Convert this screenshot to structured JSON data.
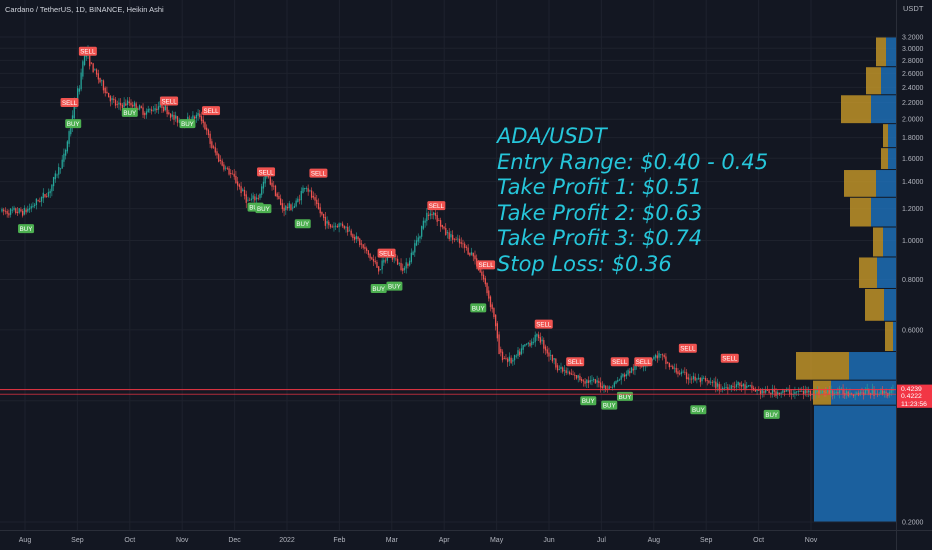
{
  "header": {
    "title": "Cardano / TetherUS, 1D, BINANCE, Heikin Ashi",
    "currency": "USDT"
  },
  "annotation": {
    "lines": [
      "ADA/USDT",
      "Entry Range: $0.40 - 0.45",
      "Take Profit 1: $0.51",
      "Take Profit 2: $0.63",
      "Take Profit 3: $0.74",
      "Stop Loss: $0.36"
    ]
  },
  "colors": {
    "background": "#131722",
    "up": "#26a69a",
    "down": "#ef5350",
    "buy_label": "#4caf50",
    "sell_label": "#f05350",
    "annotation": "#26c6da",
    "vp_gold": "#c99a28",
    "vp_blue": "#1e73be",
    "ref_line": "#f23645"
  },
  "chart_data": {
    "type": "candlestick",
    "x_axis_labels": [
      "Aug",
      "Sep",
      "Oct",
      "Nov",
      "Dec",
      "2022",
      "Feb",
      "Mar",
      "Apr",
      "May",
      "Jun",
      "Jul",
      "Aug",
      "Sep",
      "Oct",
      "Nov"
    ],
    "y_axis_labels": [
      "3.2000",
      "3.0000",
      "2.8000",
      "2.6000",
      "2.4000",
      "2.2000",
      "2.0000",
      "1.8000",
      "1.6000",
      "1.4000",
      "1.2000",
      "1.0000",
      "0.8000",
      "0.6000",
      "0.4000",
      "0.2000"
    ],
    "y_scale": "log",
    "ylim": [
      0.18,
      3.4
    ],
    "price_labels": [
      {
        "value": 0.4239,
        "text": "0.4239",
        "color": "#f23645"
      },
      {
        "value": 0.4222,
        "text": "0.4222",
        "color": "#f23645"
      },
      {
        "value": 0.4222,
        "text": "11:23:56",
        "color": "#f23645"
      }
    ],
    "trend": [
      {
        "m": 0,
        "v": 1.18
      },
      {
        "m": 0.45,
        "v": 1.32
      },
      {
        "m": 0.75,
        "v": 1.62
      },
      {
        "m": 0.95,
        "v": 2.2
      },
      {
        "m": 1.05,
        "v": 2.45
      },
      {
        "m": 1.1,
        "v": 2.85
      },
      {
        "m": 1.2,
        "v": 2.92
      },
      {
        "m": 1.25,
        "v": 2.72
      },
      {
        "m": 1.4,
        "v": 2.52
      },
      {
        "m": 1.6,
        "v": 2.28
      },
      {
        "m": 1.75,
        "v": 2.15
      },
      {
        "m": 2.0,
        "v": 2.2
      },
      {
        "m": 2.3,
        "v": 2.08
      },
      {
        "m": 2.6,
        "v": 2.18
      },
      {
        "m": 2.85,
        "v": 2.0
      },
      {
        "m": 3.05,
        "v": 1.98
      },
      {
        "m": 3.35,
        "v": 2.05
      },
      {
        "m": 3.55,
        "v": 1.72
      },
      {
        "m": 3.75,
        "v": 1.55
      },
      {
        "m": 4.0,
        "v": 1.42
      },
      {
        "m": 4.25,
        "v": 1.25
      },
      {
        "m": 4.45,
        "v": 1.28
      },
      {
        "m": 4.6,
        "v": 1.45
      },
      {
        "m": 4.75,
        "v": 1.35
      },
      {
        "m": 4.9,
        "v": 1.2
      },
      {
        "m": 5.15,
        "v": 1.22
      },
      {
        "m": 5.35,
        "v": 1.38
      },
      {
        "m": 5.55,
        "v": 1.22
      },
      {
        "m": 5.8,
        "v": 1.08
      },
      {
        "m": 6.05,
        "v": 1.1
      },
      {
        "m": 6.3,
        "v": 1.02
      },
      {
        "m": 6.55,
        "v": 0.92
      },
      {
        "m": 6.75,
        "v": 0.85
      },
      {
        "m": 6.95,
        "v": 0.92
      },
      {
        "m": 7.25,
        "v": 0.85
      },
      {
        "m": 7.45,
        "v": 0.98
      },
      {
        "m": 7.65,
        "v": 1.15
      },
      {
        "m": 7.8,
        "v": 1.18
      },
      {
        "m": 8.0,
        "v": 1.05
      },
      {
        "m": 8.3,
        "v": 0.98
      },
      {
        "m": 8.55,
        "v": 0.92
      },
      {
        "m": 8.75,
        "v": 0.8
      },
      {
        "m": 8.95,
        "v": 0.65
      },
      {
        "m": 9.05,
        "v": 0.52
      },
      {
        "m": 9.3,
        "v": 0.5
      },
      {
        "m": 9.55,
        "v": 0.55
      },
      {
        "m": 9.8,
        "v": 0.58
      },
      {
        "m": 10.0,
        "v": 0.52
      },
      {
        "m": 10.2,
        "v": 0.48
      },
      {
        "m": 10.45,
        "v": 0.46
      },
      {
        "m": 10.7,
        "v": 0.45
      },
      {
        "m": 10.95,
        "v": 0.44
      },
      {
        "m": 11.15,
        "v": 0.43
      },
      {
        "m": 11.4,
        "v": 0.46
      },
      {
        "m": 11.6,
        "v": 0.48
      },
      {
        "m": 11.85,
        "v": 0.5
      },
      {
        "m": 12.1,
        "v": 0.52
      },
      {
        "m": 12.35,
        "v": 0.48
      },
      {
        "m": 12.6,
        "v": 0.46
      },
      {
        "m": 12.85,
        "v": 0.45
      },
      {
        "m": 13.1,
        "v": 0.44
      },
      {
        "m": 13.3,
        "v": 0.43
      },
      {
        "m": 13.55,
        "v": 0.44
      },
      {
        "m": 13.8,
        "v": 0.43
      },
      {
        "m": 14.05,
        "v": 0.42
      },
      {
        "m": 14.25,
        "v": 0.42
      }
    ],
    "signals": [
      {
        "type": "BUY",
        "m": 0.02,
        "v": 1.07
      },
      {
        "type": "SELL",
        "m": 0.85,
        "v": 2.2
      },
      {
        "type": "BUY",
        "m": 0.92,
        "v": 1.95
      },
      {
        "type": "SELL",
        "m": 1.2,
        "v": 2.95
      },
      {
        "type": "BUY",
        "m": 2.0,
        "v": 2.08
      },
      {
        "type": "SELL",
        "m": 2.75,
        "v": 2.22
      },
      {
        "type": "BUY",
        "m": 3.1,
        "v": 1.95
      },
      {
        "type": "SELL",
        "m": 3.55,
        "v": 2.1
      },
      {
        "type": "SELL",
        "m": 4.6,
        "v": 1.48
      },
      {
        "type": "BUY",
        "m": 4.4,
        "v": 1.21
      },
      {
        "type": "BUY",
        "m": 4.55,
        "v": 1.2
      },
      {
        "type": "BUY",
        "m": 5.3,
        "v": 1.1
      },
      {
        "type": "SELL",
        "m": 5.6,
        "v": 1.47
      },
      {
        "type": "SELL",
        "m": 6.9,
        "v": 0.93
      },
      {
        "type": "BUY",
        "m": 6.75,
        "v": 0.76
      },
      {
        "type": "BUY",
        "m": 7.05,
        "v": 0.77
      },
      {
        "type": "SELL",
        "m": 7.85,
        "v": 1.22
      },
      {
        "type": "SELL",
        "m": 8.8,
        "v": 0.87
      },
      {
        "type": "BUY",
        "m": 8.65,
        "v": 0.68
      },
      {
        "type": "SELL",
        "m": 9.9,
        "v": 0.62
      },
      {
        "type": "SELL",
        "m": 10.5,
        "v": 0.5
      },
      {
        "type": "BUY",
        "m": 10.75,
        "v": 0.4
      },
      {
        "type": "BUY",
        "m": 11.15,
        "v": 0.39
      },
      {
        "type": "SELL",
        "m": 11.35,
        "v": 0.5
      },
      {
        "type": "BUY",
        "m": 11.45,
        "v": 0.41
      },
      {
        "type": "SELL",
        "m": 11.8,
        "v": 0.5
      },
      {
        "type": "SELL",
        "m": 12.65,
        "v": 0.54
      },
      {
        "type": "BUY",
        "m": 12.85,
        "v": 0.38
      },
      {
        "type": "SELL",
        "m": 13.45,
        "v": 0.51
      },
      {
        "type": "BUY",
        "m": 14.25,
        "v": 0.37
      }
    ],
    "volume_profile": [
      {
        "lo": 0.2,
        "hi": 0.39,
        "gold": 0,
        "blue": 82
      },
      {
        "lo": 0.39,
        "hi": 0.45,
        "gold": 18,
        "blue": 65
      },
      {
        "lo": 0.45,
        "hi": 0.53,
        "gold": 53,
        "blue": 47
      },
      {
        "lo": 0.53,
        "hi": 0.63,
        "gold": 8,
        "blue": 3
      },
      {
        "lo": 0.63,
        "hi": 0.76,
        "gold": 19,
        "blue": 12
      },
      {
        "lo": 0.76,
        "hi": 0.91,
        "gold": 18,
        "blue": 19
      },
      {
        "lo": 0.91,
        "hi": 1.08,
        "gold": 10,
        "blue": 13
      },
      {
        "lo": 1.08,
        "hi": 1.28,
        "gold": 21,
        "blue": 25
      },
      {
        "lo": 1.28,
        "hi": 1.5,
        "gold": 32,
        "blue": 20
      },
      {
        "lo": 1.5,
        "hi": 1.7,
        "gold": 7,
        "blue": 8
      },
      {
        "lo": 1.7,
        "hi": 1.95,
        "gold": 5,
        "blue": 8
      },
      {
        "lo": 1.95,
        "hi": 2.3,
        "gold": 30,
        "blue": 25
      },
      {
        "lo": 2.3,
        "hi": 2.7,
        "gold": 15,
        "blue": 15
      },
      {
        "lo": 2.7,
        "hi": 3.2,
        "gold": 10,
        "blue": 10
      }
    ]
  }
}
